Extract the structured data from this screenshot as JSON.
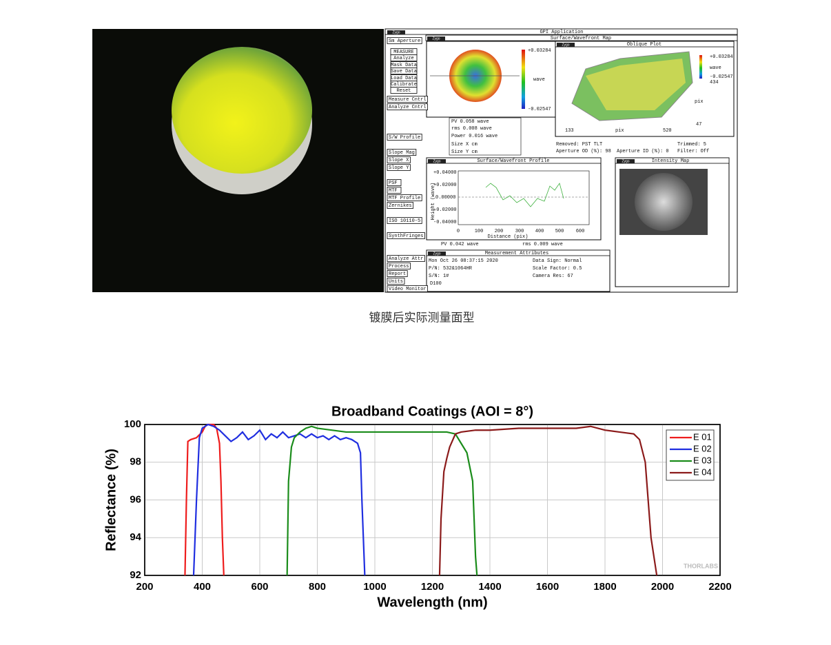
{
  "caption": "镀膜后实际测量面型",
  "zygo": {
    "logo": "Zygo",
    "buttons": [
      "Sm Aperture",
      "MEASURE",
      "Analyze",
      "Mask Data",
      "Save Data",
      "Load Data",
      "Calibrate",
      "Reset",
      "Measure Cntrl",
      "Analyze Cntrl",
      "S/W Profile",
      "Slope Mag",
      "Slope X",
      "Slope Y",
      "PSF",
      "MTF",
      "MTF Profile",
      "Zernikes",
      "ISO 10110-5",
      "SynthFringes",
      "Analyze Attr",
      "Process",
      "Report",
      "Units",
      "Video Monitor"
    ],
    "labels": [
      "GPI Application",
      "Surface/Wavefront Map",
      "Oblique Plot",
      "+0.03284",
      "wave",
      "-0.02547",
      "+0.03284",
      "wave",
      "-0.02547",
      "434",
      "pix",
      "47",
      "133",
      "pix",
      "520",
      "PV      0.058   wave",
      "rms     0.008   wave",
      "Power   0.016   wave",
      "Size X          cm",
      "Size Y          cm",
      "Removed: PST TLT",
      "Trimmed:  5",
      "Aperture OD (%):  98",
      "Aperture ID (%):  0",
      "Filter:     Off",
      "Surface/Wavefront Profile",
      "Intensity Map",
      "+0.04000",
      "+0.02000",
      "0.00000",
      "-0.02000",
      "-0.04000",
      "0",
      "100",
      "200",
      "300",
      "400",
      "500",
      "600",
      "Height (wave)",
      "Distance (pix)",
      "PV      0.042   wave",
      "rms       0.009   wave",
      "Measurement Attributes",
      "Mon Oct 26 08:37:15 2020",
      "P/N:  532&1064HR",
      "S/N:  1#",
      "D100",
      "Data Sign:    Normal",
      "Scale Factor:   0.5",
      "Camera Res:          67"
    ]
  },
  "chart_data": {
    "type": "line",
    "title": "Broadband Coatings (AOI = 8°)",
    "x_label": "Wavelength (nm)",
    "y_label": "Reflectance (%)",
    "xlim": [
      200,
      2200
    ],
    "ylim": [
      92,
      100
    ],
    "xticks": [
      200,
      400,
      600,
      800,
      1000,
      1200,
      1400,
      1600,
      1800,
      2000,
      2200
    ],
    "yticks": [
      92,
      94,
      96,
      98,
      100
    ],
    "grid": true,
    "legend": "upper right",
    "watermark": "THORLABS",
    "series": [
      {
        "name": "E 01",
        "color": "#ee1c1c",
        "x": [
          340,
          345,
          350,
          360,
          380,
          400,
          410,
          420,
          440,
          450,
          460,
          465,
          470,
          475
        ],
        "values": [
          92,
          96,
          99.1,
          99.2,
          99.3,
          99.6,
          99.9,
          100,
          100,
          99.8,
          99,
          97,
          94,
          92
        ]
      },
      {
        "name": "E 02",
        "color": "#1f2ee0",
        "x": [
          370,
          380,
          390,
          400,
          420,
          440,
          460,
          480,
          500,
          520,
          540,
          560,
          580,
          600,
          620,
          640,
          660,
          680,
          700,
          720,
          740,
          760,
          780,
          800,
          820,
          840,
          860,
          880,
          900,
          920,
          940,
          950,
          955,
          960,
          965
        ],
        "values": [
          92,
          96,
          99.3,
          99.8,
          100,
          99.9,
          99.7,
          99.4,
          99.1,
          99.3,
          99.6,
          99.2,
          99.4,
          99.7,
          99.2,
          99.5,
          99.3,
          99.6,
          99.3,
          99.4,
          99.5,
          99.3,
          99.5,
          99.3,
          99.4,
          99.2,
          99.4,
          99.2,
          99.3,
          99.2,
          99.0,
          98.5,
          96,
          94,
          92
        ]
      },
      {
        "name": "E 03",
        "color": "#1a8c1a",
        "x": [
          695,
          700,
          710,
          720,
          740,
          760,
          780,
          800,
          850,
          900,
          1000,
          1100,
          1200,
          1250,
          1280,
          1300,
          1320,
          1340,
          1345,
          1350,
          1355
        ],
        "values": [
          92,
          97,
          98.8,
          99.3,
          99.6,
          99.8,
          99.9,
          99.8,
          99.7,
          99.6,
          99.6,
          99.6,
          99.6,
          99.6,
          99.5,
          99.0,
          98.5,
          97,
          95,
          93,
          92
        ]
      },
      {
        "name": "E 04",
        "color": "#8b1a1a",
        "x": [
          1225,
          1230,
          1240,
          1250,
          1260,
          1280,
          1300,
          1350,
          1400,
          1500,
          1600,
          1700,
          1750,
          1800,
          1850,
          1900,
          1920,
          1940,
          1950,
          1960,
          1970,
          1980
        ],
        "values": [
          92,
          95,
          97.5,
          98.2,
          98.8,
          99.5,
          99.6,
          99.7,
          99.7,
          99.8,
          99.8,
          99.8,
          99.9,
          99.7,
          99.6,
          99.5,
          99.2,
          98,
          96,
          94,
          93,
          92
        ]
      }
    ]
  }
}
